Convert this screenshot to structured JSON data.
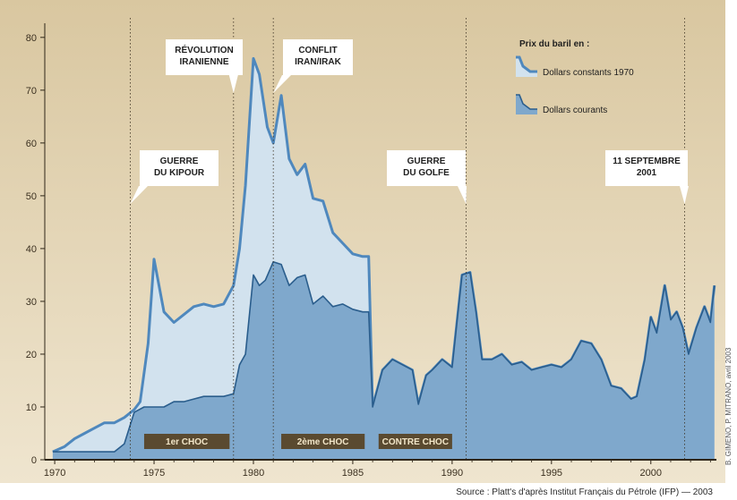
{
  "chart_data": {
    "type": "area",
    "y_ticks": [
      0,
      10,
      20,
      30,
      40,
      50,
      60,
      70,
      80
    ],
    "x_ticks": [
      1970,
      1975,
      1980,
      1985,
      1990,
      1995,
      2000
    ],
    "x_tick_labels": [
      "1970",
      "1975",
      "1980",
      "1985",
      "1990",
      "1995",
      "2000"
    ],
    "xlim": [
      1969.5,
      2003.3
    ],
    "ylim": [
      0,
      82
    ],
    "grid": false,
    "legend_position": "top-right",
    "legend_title": "Prix du baril en :",
    "series": [
      {
        "name": "Dollars constants 1970",
        "fill": "#d2e2ee",
        "stroke": "#4f88bd",
        "points": [
          [
            1969.9,
            1.5
          ],
          [
            1970.5,
            2.5
          ],
          [
            1971.0,
            4.0
          ],
          [
            1971.5,
            5.0
          ],
          [
            1972.0,
            6.0
          ],
          [
            1972.5,
            7.0
          ],
          [
            1973.0,
            7.0
          ],
          [
            1973.5,
            8.0
          ],
          [
            1974.0,
            9.5
          ],
          [
            1974.3,
            11.0
          ],
          [
            1974.7,
            22.0
          ],
          [
            1975.0,
            38.0
          ],
          [
            1975.5,
            28.0
          ],
          [
            1976.0,
            26.0
          ],
          [
            1976.5,
            27.5
          ],
          [
            1977.0,
            29.0
          ],
          [
            1977.5,
            29.5
          ],
          [
            1978.0,
            29.0
          ],
          [
            1978.5,
            29.5
          ],
          [
            1979.0,
            33.0
          ],
          [
            1979.3,
            40.0
          ],
          [
            1979.6,
            52.0
          ],
          [
            1980.0,
            76.0
          ],
          [
            1980.3,
            73.0
          ],
          [
            1980.7,
            63.0
          ],
          [
            1981.0,
            60.0
          ],
          [
            1981.4,
            69.0
          ],
          [
            1981.8,
            57.0
          ],
          [
            1982.2,
            54.0
          ],
          [
            1982.6,
            56.0
          ],
          [
            1983.0,
            49.5
          ],
          [
            1983.5,
            49.0
          ],
          [
            1984.0,
            43.0
          ],
          [
            1984.5,
            41.0
          ],
          [
            1985.0,
            39.0
          ],
          [
            1985.5,
            38.5
          ],
          [
            1985.8,
            38.5
          ],
          [
            1986.0,
            10.0
          ],
          [
            1986.5,
            17.0
          ],
          [
            1987.0,
            19.0
          ],
          [
            1987.5,
            18.0
          ],
          [
            1988.0,
            17.0
          ],
          [
            1988.3,
            10.5
          ],
          [
            1988.7,
            16.0
          ],
          [
            1989.0,
            17.0
          ],
          [
            1989.5,
            19.0
          ],
          [
            1990.0,
            17.5
          ],
          [
            1990.5,
            35.0
          ],
          [
            1990.9,
            35.5
          ],
          [
            1991.2,
            28.0
          ],
          [
            1991.5,
            19.0
          ],
          [
            1992.0,
            19.0
          ],
          [
            1992.5,
            20.0
          ],
          [
            1993.0,
            18.0
          ],
          [
            1993.5,
            18.5
          ],
          [
            1994.0,
            17.0
          ],
          [
            1994.5,
            17.5
          ],
          [
            1995.0,
            18.0
          ],
          [
            1995.5,
            17.5
          ],
          [
            1996.0,
            19.0
          ],
          [
            1996.5,
            22.5
          ],
          [
            1997.0,
            22.0
          ],
          [
            1997.5,
            19.0
          ],
          [
            1998.0,
            14.0
          ],
          [
            1998.5,
            13.5
          ],
          [
            1999.0,
            11.5
          ],
          [
            1999.3,
            12.0
          ],
          [
            1999.7,
            19.0
          ],
          [
            2000.0,
            27.0
          ],
          [
            2000.3,
            24.0
          ],
          [
            2000.7,
            33.0
          ],
          [
            2001.0,
            26.5
          ],
          [
            2001.3,
            28.0
          ],
          [
            2001.6,
            25.0
          ],
          [
            2001.9,
            20.0
          ],
          [
            2002.3,
            25.0
          ],
          [
            2002.7,
            29.0
          ],
          [
            2003.0,
            26.0
          ],
          [
            2003.2,
            33.0
          ]
        ]
      },
      {
        "name": "Dollars courants",
        "fill": "#7fa8cc",
        "stroke": "#2a5d8c",
        "points": [
          [
            1969.9,
            1.5
          ],
          [
            1970.5,
            1.5
          ],
          [
            1971.0,
            1.5
          ],
          [
            1971.5,
            1.5
          ],
          [
            1972.0,
            1.5
          ],
          [
            1972.5,
            1.5
          ],
          [
            1973.0,
            1.5
          ],
          [
            1973.5,
            3.0
          ],
          [
            1974.0,
            9.0
          ],
          [
            1974.5,
            10.0
          ],
          [
            1975.0,
            10.0
          ],
          [
            1975.5,
            10.0
          ],
          [
            1976.0,
            11.0
          ],
          [
            1976.5,
            11.0
          ],
          [
            1977.0,
            11.5
          ],
          [
            1977.5,
            12.0
          ],
          [
            1978.0,
            12.0
          ],
          [
            1978.5,
            12.0
          ],
          [
            1979.0,
            12.5
          ],
          [
            1979.3,
            18.0
          ],
          [
            1979.6,
            20.0
          ],
          [
            1980.0,
            35.0
          ],
          [
            1980.3,
            33.0
          ],
          [
            1980.6,
            34.0
          ],
          [
            1981.0,
            37.5
          ],
          [
            1981.4,
            37.0
          ],
          [
            1981.8,
            33.0
          ],
          [
            1982.2,
            34.5
          ],
          [
            1982.6,
            35.0
          ],
          [
            1983.0,
            29.5
          ],
          [
            1983.5,
            31.0
          ],
          [
            1984.0,
            29.0
          ],
          [
            1984.5,
            29.5
          ],
          [
            1985.0,
            28.5
          ],
          [
            1985.5,
            28.0
          ],
          [
            1985.8,
            28.0
          ],
          [
            1986.0,
            10.0
          ],
          [
            1986.5,
            17.0
          ],
          [
            1987.0,
            19.0
          ],
          [
            1987.5,
            18.0
          ],
          [
            1988.0,
            17.0
          ],
          [
            1988.3,
            10.5
          ],
          [
            1988.7,
            16.0
          ],
          [
            1989.0,
            17.0
          ],
          [
            1989.5,
            19.0
          ],
          [
            1990.0,
            17.5
          ],
          [
            1990.5,
            35.0
          ],
          [
            1990.9,
            35.5
          ],
          [
            1991.2,
            28.0
          ],
          [
            1991.5,
            19.0
          ],
          [
            1992.0,
            19.0
          ],
          [
            1992.5,
            20.0
          ],
          [
            1993.0,
            18.0
          ],
          [
            1993.5,
            18.5
          ],
          [
            1994.0,
            17.0
          ],
          [
            1994.5,
            17.5
          ],
          [
            1995.0,
            18.0
          ],
          [
            1995.5,
            17.5
          ],
          [
            1996.0,
            19.0
          ],
          [
            1996.5,
            22.5
          ],
          [
            1997.0,
            22.0
          ],
          [
            1997.5,
            19.0
          ],
          [
            1998.0,
            14.0
          ],
          [
            1998.5,
            13.5
          ],
          [
            1999.0,
            11.5
          ],
          [
            1999.3,
            12.0
          ],
          [
            1999.7,
            19.0
          ],
          [
            2000.0,
            27.0
          ],
          [
            2000.3,
            24.0
          ],
          [
            2000.7,
            33.0
          ],
          [
            2001.0,
            26.5
          ],
          [
            2001.3,
            28.0
          ],
          [
            2001.6,
            25.0
          ],
          [
            2001.9,
            20.0
          ],
          [
            2002.3,
            25.0
          ],
          [
            2002.7,
            29.0
          ],
          [
            2003.0,
            26.0
          ],
          [
            2003.2,
            33.0
          ]
        ]
      }
    ],
    "events": [
      {
        "x": 1973.8,
        "lines": [
          "GUERRE",
          "DU KIPOUR"
        ]
      },
      {
        "x": 1979.0,
        "lines": [
          "RÉVOLUTION",
          "IRANIENNE"
        ]
      },
      {
        "x": 1981.0,
        "lines": [
          "CONFLIT",
          "IRAN/IRAK"
        ]
      },
      {
        "x": 1990.7,
        "lines": [
          "GUERRE",
          "DU GOLFE"
        ]
      },
      {
        "x": 2001.7,
        "lines": [
          "11 SEPTEMBRE",
          "2001"
        ]
      }
    ],
    "phases": [
      {
        "x_start": 1974.5,
        "x_end": 1978.8,
        "label": "1er CHOC"
      },
      {
        "x_start": 1981.4,
        "x_end": 1985.6,
        "label": "2ème CHOC"
      },
      {
        "x_start": 1986.3,
        "x_end": 1990.0,
        "label": "CONTRE CHOC"
      }
    ],
    "source": "Source : Platt's d'après Institut Français du Pétrole (IFP) — 2003",
    "credit": "B. GIMENO, P. MITRANO, avril 2003"
  },
  "colors": {
    "background_top": "#d9c7a0",
    "background_bottom": "#efe5cf",
    "constant_fill": "#d2e2ee",
    "constant_stroke": "#4f88bd",
    "current_fill": "#7fa8cc",
    "current_stroke": "#2a5d8c",
    "phase_box": "#5a4a30",
    "event_box": "#ffffff",
    "axis": "#2f2618"
  }
}
